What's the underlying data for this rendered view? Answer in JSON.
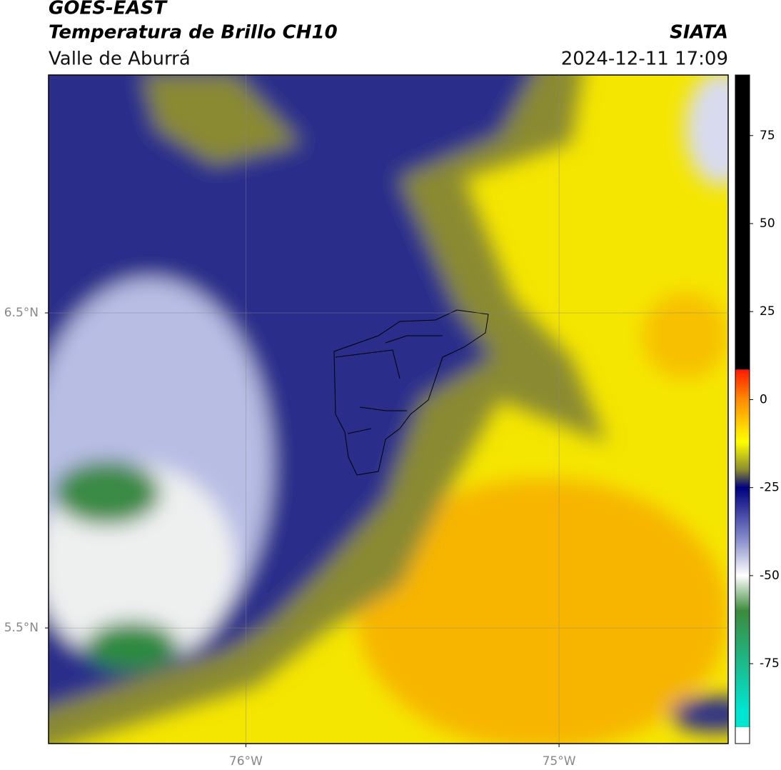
{
  "header": {
    "title": "GOES-EAST",
    "subtitle": "Temperatura de Brillo CH10",
    "region": "Valle de Aburrá",
    "source": "SIATA",
    "datetime": "2024-12-11 17:09"
  },
  "map": {
    "lonlim": [
      -76.63,
      -74.46
    ],
    "latlim": [
      5.133,
      7.255
    ],
    "lonticks": [
      {
        "value": -76,
        "label": "76°W"
      },
      {
        "value": -75,
        "label": "75°W"
      }
    ],
    "latticks": [
      {
        "value": 6.5,
        "label": "6.5°N"
      },
      {
        "value": 5.5,
        "label": "5.5°N"
      }
    ],
    "grid": true
  },
  "colorbar": {
    "lim": [
      -97.7,
      92.2
    ],
    "ticks": [
      75,
      50,
      25,
      0,
      -25,
      -50,
      -75
    ],
    "stops": [
      {
        "value": 92.2,
        "color": "#000000"
      },
      {
        "value": 8.6,
        "color": "#000000"
      },
      {
        "value": 8.5,
        "color": "#ff1a00"
      },
      {
        "value": 0,
        "color": "#ff8c00"
      },
      {
        "value": -12,
        "color": "#ffff00"
      },
      {
        "value": -20,
        "color": "#8a8a30"
      },
      {
        "value": -25,
        "color": "#000080"
      },
      {
        "value": -40,
        "color": "#8a90cc"
      },
      {
        "value": -50,
        "color": "#ffffff"
      },
      {
        "value": -60,
        "color": "#3c8a3c"
      },
      {
        "value": -88,
        "color": "#00e5d0"
      },
      {
        "value": -93,
        "color": "#00e5d0"
      },
      {
        "value": -93.1,
        "color": "#ffffff"
      },
      {
        "value": -97.7,
        "color": "#ffffff"
      }
    ]
  }
}
